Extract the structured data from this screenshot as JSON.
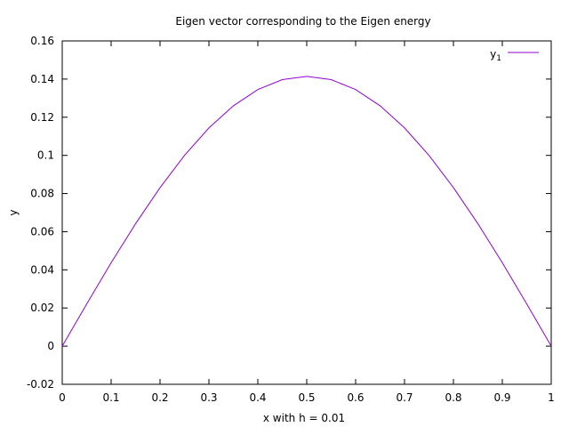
{
  "chart_data": {
    "type": "line",
    "title": "Eigen vector corresponding to the Eigen energy",
    "xlabel": "x with h = 0.01",
    "ylabel": "y",
    "xlim": [
      0,
      1
    ],
    "ylim": [
      -0.02,
      0.16
    ],
    "x_ticks": [
      0,
      0.1,
      0.2,
      0.3,
      0.4,
      0.5,
      0.6,
      0.7,
      0.8,
      0.9,
      1
    ],
    "x_tick_labels": [
      "0",
      "0.1",
      "0.2",
      "0.3",
      "0.4",
      "0.5",
      "0.6",
      "0.7",
      "0.8",
      "0.9",
      "1"
    ],
    "y_ticks": [
      -0.02,
      0,
      0.02,
      0.04,
      0.06,
      0.08,
      0.1,
      0.12,
      0.14,
      0.16
    ],
    "y_tick_labels": [
      "-0.02",
      "0",
      "0.02",
      "0.04",
      "0.06",
      "0.08",
      "0.1",
      "0.12",
      "0.14",
      "0.16"
    ],
    "grid": false,
    "legend_position": "top-right",
    "series": [
      {
        "name": "y",
        "name_subscript": "1",
        "color": "#9400d3",
        "x": [
          0,
          0.05,
          0.1,
          0.15,
          0.2,
          0.25,
          0.3,
          0.35,
          0.4,
          0.45,
          0.5,
          0.55,
          0.6,
          0.65,
          0.7,
          0.75,
          0.8,
          0.85,
          0.9,
          0.95,
          1
        ],
        "y": [
          0,
          0.0221,
          0.0437,
          0.0642,
          0.0831,
          0.1,
          0.1144,
          0.126,
          0.1345,
          0.1397,
          0.1414,
          0.1397,
          0.1345,
          0.126,
          0.1144,
          0.1,
          0.0831,
          0.0642,
          0.0437,
          0.0221,
          0
        ]
      }
    ]
  }
}
